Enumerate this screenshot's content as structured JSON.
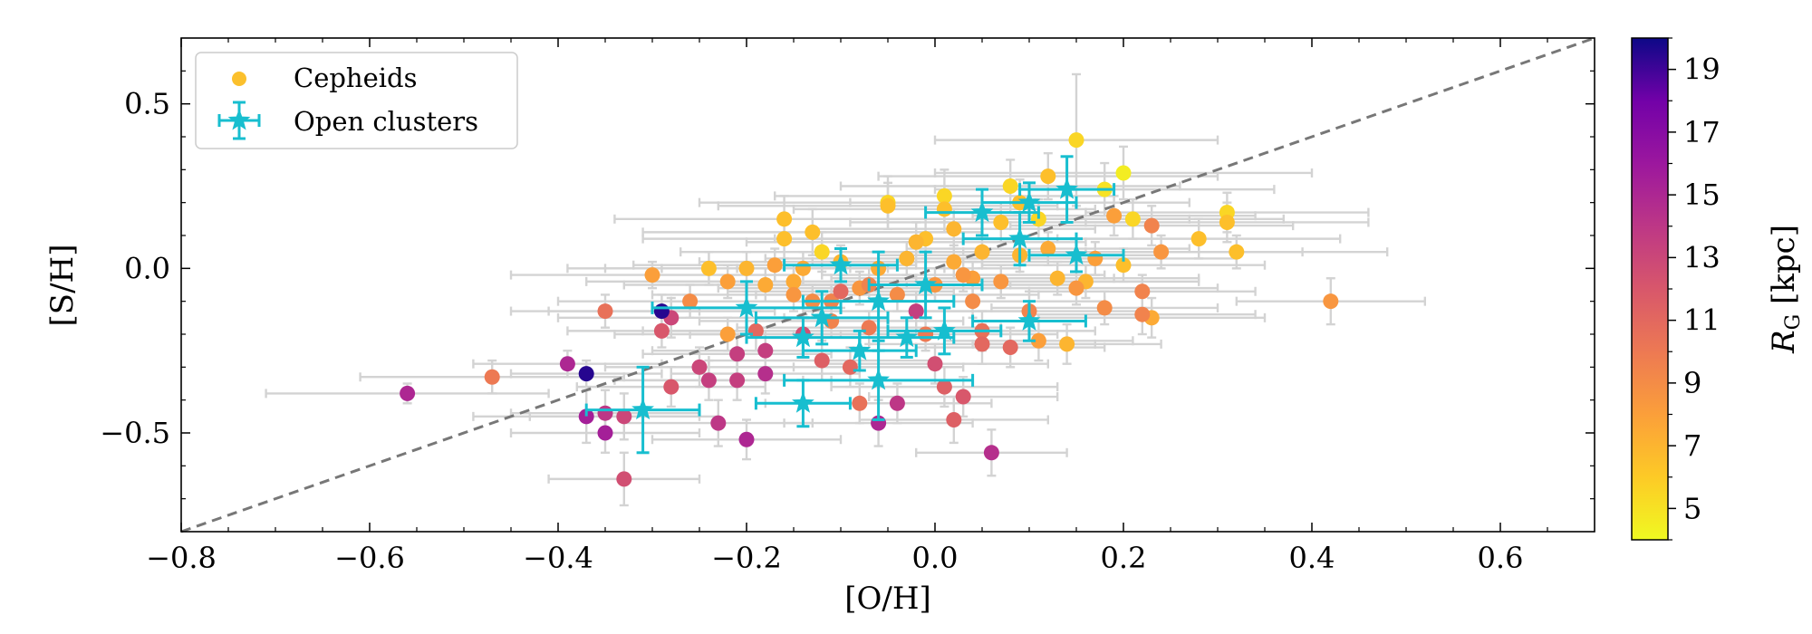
{
  "chart_data": {
    "type": "scatter",
    "xlabel": "[O/H]",
    "ylabel": "[S/H]",
    "xlim": [
      -0.8,
      0.7
    ],
    "ylim": [
      -0.8,
      0.7
    ],
    "xticks": [
      -0.8,
      -0.6,
      -0.4,
      -0.2,
      0.0,
      0.2,
      0.4,
      0.6
    ],
    "xtick_labels": [
      "−0.8",
      "−0.6",
      "−0.4",
      "−0.2",
      "0.0",
      "0.2",
      "0.4",
      "0.6"
    ],
    "yticks": [
      -0.5,
      0.0,
      0.5
    ],
    "ytick_labels": [
      "−0.5",
      "0.0",
      "0.5"
    ],
    "legend_position": "top-left",
    "reference_line": {
      "style": "dashed",
      "color": "#777777",
      "points": [
        [
          -0.8,
          -0.8
        ],
        [
          0.7,
          0.7
        ]
      ]
    },
    "colorbar": {
      "label_main": "R",
      "label_sub": "G",
      "label_unit": " [kpc]",
      "range": [
        4,
        20
      ],
      "ticks": [
        5,
        7,
        9,
        11,
        13,
        15,
        17,
        19
      ],
      "colormap": "plasma"
    },
    "series": [
      {
        "name": "Cepheids",
        "marker": "circle",
        "legend_color": "#fbc02d",
        "errorbar_color": "#d3d3d3",
        "points": [
          {
            "x": -0.56,
            "y": -0.38,
            "xe": 0.15,
            "ye": 0.03,
            "rg": 15.0
          },
          {
            "x": -0.47,
            "y": -0.33,
            "xe": 0.14,
            "ye": 0.05,
            "rg": 10.0
          },
          {
            "x": -0.39,
            "y": -0.29,
            "xe": 0.1,
            "ye": 0.04,
            "rg": 15.0
          },
          {
            "x": -0.37,
            "y": -0.32,
            "xe": 0.08,
            "ye": 0.04,
            "rg": 19.5
          },
          {
            "x": -0.37,
            "y": -0.45,
            "xe": 0.12,
            "ye": 0.08,
            "rg": 15.5
          },
          {
            "x": -0.35,
            "y": -0.5,
            "xe": 0.1,
            "ye": 0.06,
            "rg": 15.5
          },
          {
            "x": -0.35,
            "y": -0.44,
            "xe": 0.1,
            "ye": 0.07,
            "rg": 14.0
          },
          {
            "x": -0.33,
            "y": -0.45,
            "xe": 0.1,
            "ye": 0.07,
            "rg": 13.0
          },
          {
            "x": -0.33,
            "y": -0.64,
            "xe": 0.08,
            "ye": 0.08,
            "rg": 12.5
          },
          {
            "x": -0.35,
            "y": -0.13,
            "xe": 0.1,
            "ye": 0.05,
            "rg": 10.5
          },
          {
            "x": -0.3,
            "y": -0.02,
            "xe": 0.15,
            "ye": 0.04,
            "rg": 8.0
          },
          {
            "x": -0.29,
            "y": -0.13,
            "xe": 0.12,
            "ye": 0.05,
            "rg": 19.5
          },
          {
            "x": -0.29,
            "y": -0.19,
            "xe": 0.1,
            "ye": 0.05,
            "rg": 12.0
          },
          {
            "x": -0.28,
            "y": -0.15,
            "xe": 0.12,
            "ye": 0.06,
            "rg": 13.0
          },
          {
            "x": -0.28,
            "y": -0.36,
            "xe": 0.1,
            "ye": 0.06,
            "rg": 12.0
          },
          {
            "x": -0.26,
            "y": -0.1,
            "xe": 0.14,
            "ye": 0.05,
            "rg": 9.0
          },
          {
            "x": -0.25,
            "y": -0.3,
            "xe": 0.1,
            "ye": 0.06,
            "rg": 13.0
          },
          {
            "x": -0.24,
            "y": 0.0,
            "xe": 0.15,
            "ye": 0.05,
            "rg": 6.5
          },
          {
            "x": -0.24,
            "y": -0.34,
            "xe": 0.1,
            "ye": 0.06,
            "rg": 13.5
          },
          {
            "x": -0.23,
            "y": -0.47,
            "xe": 0.1,
            "ye": 0.07,
            "rg": 14.0
          },
          {
            "x": -0.22,
            "y": -0.2,
            "xe": 0.12,
            "ye": 0.05,
            "rg": 8.0
          },
          {
            "x": -0.21,
            "y": -0.26,
            "xe": 0.1,
            "ye": 0.06,
            "rg": 13.5
          },
          {
            "x": -0.21,
            "y": -0.34,
            "xe": 0.1,
            "ye": 0.06,
            "rg": 13.5
          },
          {
            "x": -0.2,
            "y": -0.52,
            "xe": 0.1,
            "ye": 0.06,
            "rg": 15.0
          },
          {
            "x": -0.19,
            "y": -0.19,
            "xe": 0.12,
            "ye": 0.06,
            "rg": 11.0
          },
          {
            "x": -0.18,
            "y": -0.32,
            "xe": 0.1,
            "ye": 0.06,
            "rg": 14.5
          },
          {
            "x": -0.18,
            "y": -0.25,
            "xe": 0.12,
            "ye": 0.06,
            "rg": 13.5
          },
          {
            "x": -0.16,
            "y": 0.15,
            "xe": 0.18,
            "ye": 0.07,
            "rg": 6.5
          },
          {
            "x": -0.16,
            "y": 0.09,
            "xe": 0.15,
            "ye": 0.06,
            "rg": 6.5
          },
          {
            "x": -0.15,
            "y": -0.04,
            "xe": 0.15,
            "ye": 0.05,
            "rg": 7.5
          },
          {
            "x": -0.14,
            "y": -0.2,
            "xe": 0.12,
            "ye": 0.06,
            "rg": 12.5
          },
          {
            "x": -0.13,
            "y": 0.11,
            "xe": 0.18,
            "ye": 0.07,
            "rg": 6.5
          },
          {
            "x": -0.12,
            "y": 0.05,
            "xe": 0.15,
            "ye": 0.06,
            "rg": 5.5
          },
          {
            "x": -0.12,
            "y": -0.28,
            "xe": 0.12,
            "ye": 0.06,
            "rg": 11.5
          },
          {
            "x": -0.11,
            "y": -0.1,
            "xe": 0.15,
            "ye": 0.05,
            "rg": 9.5
          },
          {
            "x": -0.1,
            "y": -0.07,
            "xe": 0.12,
            "ye": 0.05,
            "rg": 11.0
          },
          {
            "x": -0.09,
            "y": -0.3,
            "xe": 0.12,
            "ye": 0.06,
            "rg": 11.0
          },
          {
            "x": -0.08,
            "y": -0.41,
            "xe": 0.1,
            "ye": 0.06,
            "rg": 10.5
          },
          {
            "x": -0.07,
            "y": -0.05,
            "xe": 0.15,
            "ye": 0.05,
            "rg": 9.5
          },
          {
            "x": -0.06,
            "y": -0.47,
            "xe": 0.1,
            "ye": 0.07,
            "rg": 15.0
          },
          {
            "x": -0.05,
            "y": 0.2,
            "xe": 0.2,
            "ye": 0.08,
            "rg": 5.5
          },
          {
            "x": -0.05,
            "y": 0.19,
            "xe": 0.18,
            "ye": 0.07,
            "rg": 6.5
          },
          {
            "x": -0.04,
            "y": -0.41,
            "xe": 0.1,
            "ye": 0.06,
            "rg": 14.0
          },
          {
            "x": -0.02,
            "y": -0.13,
            "xe": 0.12,
            "ye": 0.06,
            "rg": 13.5
          },
          {
            "x": -0.02,
            "y": 0.08,
            "xe": 0.18,
            "ye": 0.06,
            "rg": 7.0
          },
          {
            "x": -0.01,
            "y": 0.09,
            "xe": 0.16,
            "ye": 0.06,
            "rg": 6.5
          },
          {
            "x": 0.0,
            "y": -0.29,
            "xe": 0.12,
            "ye": 0.06,
            "rg": 12.5
          },
          {
            "x": 0.01,
            "y": 0.22,
            "xe": 0.18,
            "ye": 0.08,
            "rg": 5.5
          },
          {
            "x": 0.01,
            "y": 0.18,
            "xe": 0.16,
            "ye": 0.07,
            "rg": 6.5
          },
          {
            "x": 0.01,
            "y": -0.36,
            "xe": 0.12,
            "ye": 0.06,
            "rg": 11.5
          },
          {
            "x": 0.02,
            "y": 0.12,
            "xe": 0.15,
            "ye": 0.06,
            "rg": 7.0
          },
          {
            "x": 0.02,
            "y": -0.46,
            "xe": 0.1,
            "ye": 0.07,
            "rg": 11.5
          },
          {
            "x": 0.03,
            "y": -0.39,
            "xe": 0.1,
            "ye": 0.06,
            "rg": 12.0
          },
          {
            "x": 0.03,
            "y": -0.02,
            "xe": 0.15,
            "ye": 0.05,
            "rg": 8.5
          },
          {
            "x": 0.05,
            "y": -0.23,
            "xe": 0.12,
            "ye": 0.06,
            "rg": 11.0
          },
          {
            "x": 0.05,
            "y": -0.19,
            "xe": 0.12,
            "ye": 0.06,
            "rg": 10.5
          },
          {
            "x": 0.06,
            "y": -0.56,
            "xe": 0.08,
            "ye": 0.07,
            "rg": 14.5
          },
          {
            "x": 0.07,
            "y": 0.14,
            "xe": 0.16,
            "ye": 0.06,
            "rg": 6.5
          },
          {
            "x": 0.08,
            "y": 0.25,
            "xe": 0.18,
            "ye": 0.08,
            "rg": 5.5
          },
          {
            "x": 0.08,
            "y": -0.24,
            "xe": 0.1,
            "ye": 0.06,
            "rg": 11.0
          },
          {
            "x": 0.09,
            "y": 0.2,
            "xe": 0.18,
            "ye": 0.07,
            "rg": 6.5
          },
          {
            "x": 0.1,
            "y": -0.13,
            "xe": 0.12,
            "ye": 0.06,
            "rg": 9.5
          },
          {
            "x": 0.11,
            "y": 0.15,
            "xe": 0.16,
            "ye": 0.06,
            "rg": 5.5
          },
          {
            "x": 0.11,
            "y": -0.22,
            "xe": 0.1,
            "ye": 0.06,
            "rg": 8.0
          },
          {
            "x": 0.12,
            "y": 0.28,
            "xe": 0.18,
            "ye": 0.07,
            "rg": 6.5
          },
          {
            "x": 0.13,
            "y": -0.03,
            "xe": 0.15,
            "ye": 0.05,
            "rg": 7.0
          },
          {
            "x": 0.14,
            "y": -0.23,
            "xe": 0.1,
            "ye": 0.06,
            "rg": 7.0
          },
          {
            "x": 0.15,
            "y": 0.39,
            "xe": 0.15,
            "ye": 0.2,
            "rg": 5.5
          },
          {
            "x": 0.15,
            "y": -0.06,
            "xe": 0.15,
            "ye": 0.05,
            "rg": 8.5
          },
          {
            "x": 0.16,
            "y": -0.04,
            "xe": 0.12,
            "ye": 0.05,
            "rg": 7.0
          },
          {
            "x": 0.18,
            "y": 0.24,
            "xe": 0.18,
            "ye": 0.08,
            "rg": 5.0
          },
          {
            "x": 0.18,
            "y": -0.12,
            "xe": 0.12,
            "ye": 0.05,
            "rg": 9.0
          },
          {
            "x": 0.19,
            "y": 0.16,
            "xe": 0.15,
            "ye": 0.06,
            "rg": 8.0
          },
          {
            "x": 0.2,
            "y": 0.29,
            "xe": 0.2,
            "ye": 0.08,
            "rg": 4.5
          },
          {
            "x": 0.2,
            "y": 0.01,
            "xe": 0.15,
            "ye": 0.05,
            "rg": 6.5
          },
          {
            "x": 0.21,
            "y": 0.15,
            "xe": 0.16,
            "ye": 0.06,
            "rg": 5.5
          },
          {
            "x": 0.22,
            "y": -0.07,
            "xe": 0.12,
            "ye": 0.05,
            "rg": 9.5
          },
          {
            "x": 0.22,
            "y": -0.14,
            "xe": 0.12,
            "ye": 0.06,
            "rg": 9.5
          },
          {
            "x": 0.23,
            "y": 0.13,
            "xe": 0.15,
            "ye": 0.06,
            "rg": 9.5
          },
          {
            "x": 0.23,
            "y": -0.15,
            "xe": 0.12,
            "ye": 0.06,
            "rg": 7.5
          },
          {
            "x": 0.24,
            "y": 0.05,
            "xe": 0.15,
            "ye": 0.05,
            "rg": 8.5
          },
          {
            "x": 0.28,
            "y": 0.09,
            "xe": 0.15,
            "ye": 0.06,
            "rg": 6.5
          },
          {
            "x": 0.31,
            "y": 0.17,
            "xe": 0.15,
            "ye": 0.06,
            "rg": 5.5
          },
          {
            "x": 0.31,
            "y": 0.14,
            "xe": 0.15,
            "ye": 0.06,
            "rg": 6.5
          },
          {
            "x": 0.32,
            "y": 0.05,
            "xe": 0.16,
            "ye": 0.05,
            "rg": 6.5
          },
          {
            "x": 0.42,
            "y": -0.1,
            "xe": 0.1,
            "ye": 0.07,
            "rg": 8.5
          },
          {
            "x": -0.2,
            "y": 0.0,
            "xe": 0.15,
            "ye": 0.05,
            "rg": 7.0
          },
          {
            "x": -0.18,
            "y": -0.05,
            "xe": 0.15,
            "ye": 0.05,
            "rg": 7.5
          },
          {
            "x": -0.17,
            "y": 0.01,
            "xe": 0.15,
            "ye": 0.05,
            "rg": 8.0
          },
          {
            "x": -0.15,
            "y": -0.08,
            "xe": 0.15,
            "ye": 0.05,
            "rg": 8.5
          },
          {
            "x": -0.14,
            "y": 0.0,
            "xe": 0.15,
            "ye": 0.05,
            "rg": 7.5
          },
          {
            "x": -0.13,
            "y": -0.1,
            "xe": 0.15,
            "ye": 0.05,
            "rg": 9.0
          },
          {
            "x": -0.1,
            "y": 0.02,
            "xe": 0.15,
            "ye": 0.05,
            "rg": 7.0
          },
          {
            "x": -0.08,
            "y": -0.06,
            "xe": 0.15,
            "ye": 0.05,
            "rg": 8.5
          },
          {
            "x": -0.06,
            "y": 0.0,
            "xe": 0.15,
            "ye": 0.05,
            "rg": 7.5
          },
          {
            "x": -0.04,
            "y": -0.08,
            "xe": 0.15,
            "ye": 0.05,
            "rg": 9.0
          },
          {
            "x": -0.03,
            "y": 0.03,
            "xe": 0.15,
            "ye": 0.05,
            "rg": 7.0
          },
          {
            "x": 0.0,
            "y": -0.05,
            "xe": 0.15,
            "ye": 0.05,
            "rg": 8.5
          },
          {
            "x": 0.02,
            "y": 0.02,
            "xe": 0.15,
            "ye": 0.05,
            "rg": 7.5
          },
          {
            "x": 0.04,
            "y": -0.03,
            "xe": 0.15,
            "ye": 0.05,
            "rg": 8.0
          },
          {
            "x": 0.05,
            "y": 0.05,
            "xe": 0.15,
            "ye": 0.05,
            "rg": 7.0
          },
          {
            "x": 0.07,
            "y": -0.04,
            "xe": 0.15,
            "ye": 0.05,
            "rg": 8.5
          },
          {
            "x": 0.09,
            "y": 0.04,
            "xe": 0.15,
            "ye": 0.05,
            "rg": 7.0
          },
          {
            "x": 0.12,
            "y": 0.06,
            "xe": 0.15,
            "ye": 0.05,
            "rg": 7.5
          },
          {
            "x": 0.17,
            "y": 0.03,
            "xe": 0.15,
            "ye": 0.05,
            "rg": 8.0
          },
          {
            "x": -0.22,
            "y": -0.04,
            "xe": 0.15,
            "ye": 0.05,
            "rg": 8.0
          },
          {
            "x": -0.11,
            "y": -0.16,
            "xe": 0.14,
            "ye": 0.05,
            "rg": 9.5
          },
          {
            "x": -0.07,
            "y": -0.18,
            "xe": 0.14,
            "ye": 0.05,
            "rg": 10.0
          },
          {
            "x": -0.01,
            "y": -0.2,
            "xe": 0.14,
            "ye": 0.05,
            "rg": 10.0
          },
          {
            "x": 0.04,
            "y": -0.1,
            "xe": 0.14,
            "ye": 0.05,
            "rg": 9.0
          }
        ]
      },
      {
        "name": "Open clusters",
        "marker": "star",
        "color": "#17becf",
        "points": [
          {
            "x": -0.31,
            "y": -0.43,
            "xe": 0.06,
            "ye": 0.13
          },
          {
            "x": -0.14,
            "y": -0.41,
            "xe": 0.05,
            "ye": 0.07
          },
          {
            "x": -0.06,
            "y": -0.34,
            "xe": 0.1,
            "ye": 0.12
          },
          {
            "x": -0.2,
            "y": -0.12,
            "xe": 0.1,
            "ye": 0.08
          },
          {
            "x": -0.14,
            "y": -0.21,
            "xe": 0.06,
            "ye": 0.06
          },
          {
            "x": -0.12,
            "y": -0.15,
            "xe": 0.07,
            "ye": 0.08
          },
          {
            "x": -0.1,
            "y": 0.01,
            "xe": 0.06,
            "ye": 0.05
          },
          {
            "x": -0.08,
            "y": -0.25,
            "xe": 0.06,
            "ye": 0.06
          },
          {
            "x": -0.06,
            "y": -0.1,
            "xe": 0.08,
            "ye": 0.15
          },
          {
            "x": -0.03,
            "y": -0.21,
            "xe": 0.05,
            "ye": 0.06
          },
          {
            "x": -0.01,
            "y": -0.05,
            "xe": 0.06,
            "ye": 0.1
          },
          {
            "x": 0.01,
            "y": -0.19,
            "xe": 0.06,
            "ye": 0.07
          },
          {
            "x": 0.05,
            "y": 0.17,
            "xe": 0.06,
            "ye": 0.07
          },
          {
            "x": 0.09,
            "y": 0.09,
            "xe": 0.06,
            "ye": 0.08
          },
          {
            "x": 0.1,
            "y": -0.16,
            "xe": 0.06,
            "ye": 0.06
          },
          {
            "x": 0.1,
            "y": 0.2,
            "xe": 0.05,
            "ye": 0.06
          },
          {
            "x": 0.14,
            "y": 0.24,
            "xe": 0.05,
            "ye": 0.1
          },
          {
            "x": 0.15,
            "y": 0.04,
            "xe": 0.05,
            "ye": 0.05
          }
        ]
      }
    ]
  }
}
